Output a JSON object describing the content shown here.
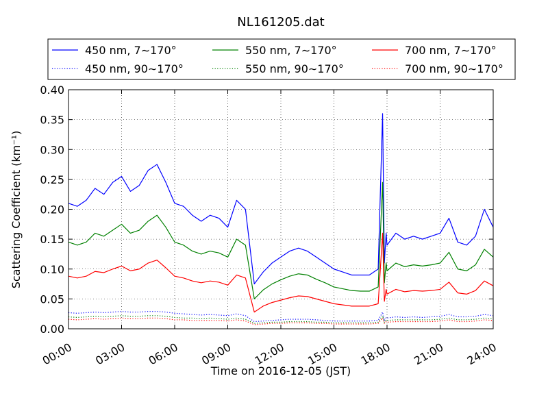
{
  "chart_data": {
    "type": "line",
    "title": "NL161205.dat",
    "xlabel": "Time on 2016-12-05 (JST)",
    "ylabel": "Scattering Coefficient (km⁻¹)",
    "xlim": [
      0,
      24
    ],
    "ylim": [
      0.0,
      0.4
    ],
    "grid": true,
    "legend_position": "top",
    "x_tick_labels": [
      "00:00",
      "03:00",
      "06:00",
      "09:00",
      "12:00",
      "15:00",
      "18:00",
      "21:00",
      "24:00"
    ],
    "y_tick_labels": [
      "0.00",
      "0.05",
      "0.10",
      "0.15",
      "0.20",
      "0.25",
      "0.30",
      "0.35",
      "0.40"
    ],
    "x_unit": "hours",
    "x": [
      0,
      0.5,
      1,
      1.5,
      2,
      2.5,
      3,
      3.5,
      4,
      4.5,
      5,
      5.5,
      6,
      6.5,
      7,
      7.5,
      8,
      8.5,
      9,
      9.5,
      10,
      10.5,
      11,
      11.5,
      12,
      12.5,
      13,
      13.5,
      14,
      14.5,
      15,
      15.5,
      16,
      16.5,
      17,
      17.5,
      17.75,
      17.85,
      17.95,
      18,
      18.5,
      19,
      19.5,
      20,
      20.5,
      21,
      21.5,
      22,
      22.5,
      23,
      23.5,
      24
    ],
    "series": [
      {
        "name": "450 nm, 7∼170°",
        "color": "#0000ff",
        "style": "solid",
        "values": [
          0.21,
          0.205,
          0.215,
          0.235,
          0.225,
          0.245,
          0.255,
          0.23,
          0.24,
          0.265,
          0.275,
          0.245,
          0.21,
          0.205,
          0.19,
          0.18,
          0.19,
          0.185,
          0.17,
          0.215,
          0.2,
          0.075,
          0.095,
          0.11,
          0.12,
          0.13,
          0.135,
          0.13,
          0.12,
          0.11,
          0.1,
          0.095,
          0.09,
          0.09,
          0.09,
          0.1,
          0.36,
          0.11,
          0.16,
          0.14,
          0.16,
          0.15,
          0.155,
          0.15,
          0.155,
          0.16,
          0.185,
          0.145,
          0.14,
          0.155,
          0.2,
          0.17
        ]
      },
      {
        "name": "450 nm, 90∼170°",
        "color": "#0000ff",
        "style": "dotted",
        "values": [
          0.027,
          0.026,
          0.027,
          0.028,
          0.027,
          0.028,
          0.029,
          0.028,
          0.028,
          0.029,
          0.029,
          0.028,
          0.026,
          0.025,
          0.024,
          0.023,
          0.024,
          0.023,
          0.022,
          0.025,
          0.022,
          0.012,
          0.013,
          0.014,
          0.015,
          0.016,
          0.016,
          0.016,
          0.015,
          0.014,
          0.013,
          0.013,
          0.013,
          0.013,
          0.013,
          0.014,
          0.028,
          0.014,
          0.019,
          0.018,
          0.02,
          0.019,
          0.02,
          0.019,
          0.02,
          0.021,
          0.024,
          0.02,
          0.02,
          0.021,
          0.024,
          0.022
        ]
      },
      {
        "name": "550 nm, 7∼170°",
        "color": "#008000",
        "style": "solid",
        "values": [
          0.145,
          0.14,
          0.145,
          0.16,
          0.155,
          0.165,
          0.175,
          0.16,
          0.165,
          0.18,
          0.19,
          0.17,
          0.145,
          0.14,
          0.13,
          0.125,
          0.13,
          0.127,
          0.12,
          0.15,
          0.14,
          0.05,
          0.065,
          0.075,
          0.082,
          0.088,
          0.092,
          0.09,
          0.083,
          0.077,
          0.07,
          0.067,
          0.064,
          0.063,
          0.063,
          0.07,
          0.245,
          0.077,
          0.11,
          0.097,
          0.11,
          0.104,
          0.107,
          0.105,
          0.107,
          0.11,
          0.128,
          0.1,
          0.097,
          0.107,
          0.133,
          0.12
        ]
      },
      {
        "name": "550 nm, 90∼170°",
        "color": "#008000",
        "style": "dotted",
        "values": [
          0.02,
          0.019,
          0.02,
          0.021,
          0.02,
          0.021,
          0.022,
          0.021,
          0.021,
          0.022,
          0.022,
          0.021,
          0.019,
          0.018,
          0.018,
          0.017,
          0.018,
          0.017,
          0.016,
          0.018,
          0.016,
          0.009,
          0.01,
          0.011,
          0.011,
          0.012,
          0.012,
          0.012,
          0.011,
          0.011,
          0.01,
          0.01,
          0.01,
          0.01,
          0.01,
          0.011,
          0.022,
          0.011,
          0.015,
          0.014,
          0.015,
          0.015,
          0.015,
          0.015,
          0.015,
          0.016,
          0.018,
          0.015,
          0.015,
          0.016,
          0.018,
          0.017
        ]
      },
      {
        "name": "700 nm, 7∼170°",
        "color": "#ff0000",
        "style": "solid",
        "values": [
          0.088,
          0.085,
          0.088,
          0.096,
          0.094,
          0.1,
          0.105,
          0.097,
          0.1,
          0.11,
          0.115,
          0.102,
          0.088,
          0.085,
          0.08,
          0.077,
          0.08,
          0.078,
          0.073,
          0.09,
          0.085,
          0.028,
          0.038,
          0.044,
          0.048,
          0.052,
          0.055,
          0.054,
          0.05,
          0.046,
          0.042,
          0.04,
          0.038,
          0.038,
          0.038,
          0.042,
          0.16,
          0.046,
          0.066,
          0.058,
          0.066,
          0.062,
          0.064,
          0.063,
          0.064,
          0.066,
          0.078,
          0.06,
          0.058,
          0.064,
          0.08,
          0.072
        ]
      },
      {
        "name": "700 nm, 90∼170°",
        "color": "#ff0000",
        "style": "dotted",
        "values": [
          0.016,
          0.015,
          0.016,
          0.017,
          0.016,
          0.017,
          0.018,
          0.017,
          0.017,
          0.018,
          0.018,
          0.017,
          0.015,
          0.015,
          0.014,
          0.014,
          0.014,
          0.014,
          0.013,
          0.015,
          0.013,
          0.007,
          0.008,
          0.009,
          0.009,
          0.01,
          0.01,
          0.01,
          0.009,
          0.009,
          0.008,
          0.008,
          0.008,
          0.008,
          0.008,
          0.009,
          0.018,
          0.009,
          0.012,
          0.011,
          0.012,
          0.012,
          0.012,
          0.012,
          0.012,
          0.013,
          0.015,
          0.012,
          0.012,
          0.013,
          0.015,
          0.014
        ]
      }
    ]
  }
}
